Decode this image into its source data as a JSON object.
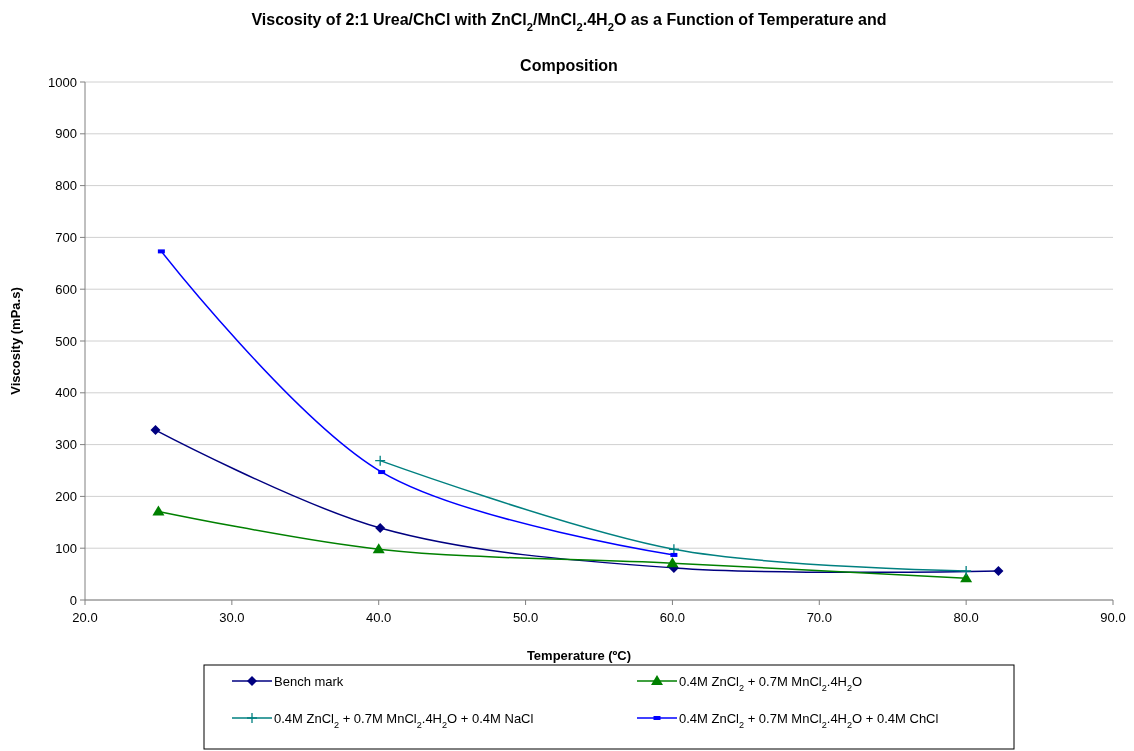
{
  "chart_data": {
    "type": "line",
    "title": "Viscosity of 2:1 Urea/ChCl with ZnCl$_{2}$/MnCl$_{2}$.4H$_{2}$O as a Function of Temperature and Composition",
    "xlabel": "Temperature (ºC)",
    "ylabel": "Viscosity (mPa.s)",
    "xlim": [
      20,
      90
    ],
    "xticks": [
      {
        "value": 20,
        "label": "20.0"
      },
      {
        "value": 30,
        "label": "30.0"
      },
      {
        "value": 40,
        "label": "40.0"
      },
      {
        "value": 50,
        "label": "50.0"
      },
      {
        "value": 60,
        "label": "60.0"
      },
      {
        "value": 70,
        "label": "70.0"
      },
      {
        "value": 80,
        "label": "80.0"
      },
      {
        "value": 90,
        "label": "90.0"
      }
    ],
    "ylim": [
      0,
      1000
    ],
    "yticks": [
      0,
      100,
      200,
      300,
      400,
      500,
      600,
      700,
      800,
      900,
      1000
    ],
    "grid": "y",
    "legend": "bottom",
    "series": [
      {
        "name": "Bench mark",
        "color": "#000080",
        "marker": "diamond",
        "x": [
          24.8,
          40.1,
          60.1,
          82.2
        ],
        "values": [
          328,
          139,
          62,
          56
        ]
      },
      {
        "name": "0.4M ZnCl$_{2}$ + 0.7M MnCl$_{2}$.4H$_{2}$O",
        "color": "#008000",
        "marker": "triangle",
        "x": [
          25,
          40,
          60,
          80
        ],
        "values": [
          171,
          98,
          71,
          42
        ]
      },
      {
        "name": "0.4M ZnCl$_{2}$ + 0.7M MnCl$_{2}$.4H$_{2}$O + 0.4M NaCl",
        "color": "#008080",
        "marker": "cross",
        "x": [
          40.1,
          60.1,
          80
        ],
        "values": [
          269,
          98,
          56
        ]
      },
      {
        "name": "0.4M ZnCl$_{2}$ + 0.7M MnCl$_{2}$.4H$_{2}$O + 0.4M ChCl",
        "color": "#0000ff",
        "marker": "square",
        "x": [
          25.2,
          40.2,
          60.1
        ],
        "values": [
          673,
          247,
          87
        ]
      }
    ]
  }
}
